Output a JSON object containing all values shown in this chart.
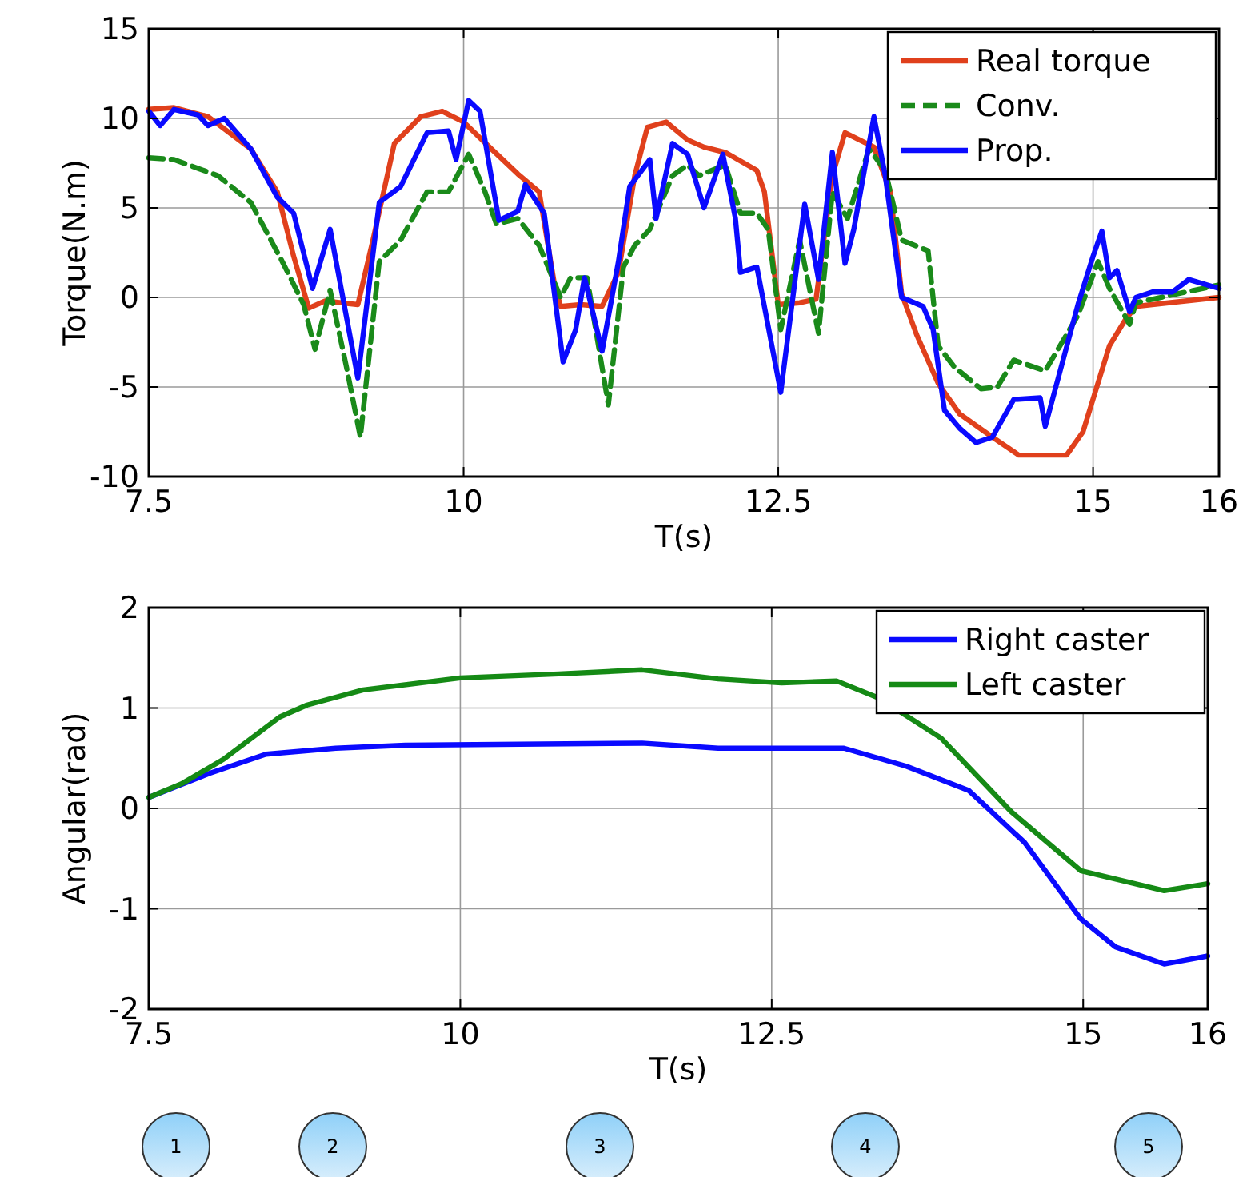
{
  "chart_data": [
    {
      "type": "line",
      "xlabel": "T(s)",
      "ylabel": "Torque(N.m)",
      "xlim": [
        7.5,
        16
      ],
      "xticks": [
        7.5,
        10,
        12.5,
        15,
        16
      ],
      "ylim": [
        -10,
        15
      ],
      "yticks": [
        -10,
        -5,
        0,
        5,
        10,
        15
      ],
      "grid": true,
      "legend": "top right",
      "marker": "none",
      "series": [
        {
          "name": "Real torque",
          "color": "#e0401c",
          "line_style": "solid",
          "x": [
            7.5,
            7.7,
            7.97,
            8.31,
            8.52,
            8.65,
            8.77,
            8.9,
            9.16,
            9.28,
            9.45,
            9.66,
            9.83,
            10.0,
            10.22,
            10.43,
            10.6,
            10.72,
            10.77,
            10.93,
            11.1,
            11.23,
            11.36,
            11.46,
            11.61,
            11.78,
            11.91,
            12.08,
            12.33,
            12.39,
            12.5,
            12.67,
            12.8,
            12.93,
            13.03,
            13.26,
            13.39,
            13.48,
            13.6,
            13.77,
            13.94,
            14.2,
            14.41,
            14.79,
            14.92,
            15.13,
            15.26,
            15.34,
            15.6,
            16
          ],
          "values": [
            10.5,
            10.6,
            10.1,
            8.3,
            5.9,
            2.3,
            -0.6,
            -0.2,
            -0.4,
            3.2,
            8.6,
            10.1,
            10.4,
            9.8,
            8.3,
            6.9,
            5.9,
            0.8,
            -0.5,
            -0.4,
            -0.5,
            1.4,
            6.8,
            9.5,
            9.8,
            8.8,
            8.4,
            8.1,
            7.1,
            5.9,
            -0.4,
            -0.3,
            -0.1,
            6.8,
            9.2,
            8.4,
            5.9,
            0.2,
            -2.1,
            -4.8,
            -6.5,
            -7.8,
            -8.8,
            -8.8,
            -7.5,
            -2.7,
            -1.2,
            -0.5,
            -0.3,
            0
          ]
        },
        {
          "name": "Conv.",
          "color": "#1a8a1a",
          "line_style": "dashed",
          "x": [
            7.5,
            7.7,
            8.05,
            8.31,
            8.56,
            8.73,
            8.82,
            8.94,
            9.07,
            9.18,
            9.33,
            9.5,
            9.71,
            9.88,
            10.04,
            10.17,
            10.26,
            10.43,
            10.6,
            10.77,
            10.85,
            10.98,
            11.15,
            11.27,
            11.36,
            11.48,
            11.66,
            11.78,
            11.87,
            12.08,
            12.2,
            12.33,
            12.42,
            12.52,
            12.67,
            12.82,
            12.93,
            13.05,
            13.22,
            13.35,
            13.48,
            13.69,
            13.77,
            13.9,
            14.11,
            14.24,
            14.37,
            14.62,
            14.88,
            15.04,
            15.13,
            15.29,
            15.34,
            16
          ],
          "values": [
            7.8,
            7.7,
            6.8,
            5.3,
            2.0,
            -0.4,
            -2.9,
            0.4,
            -3.9,
            -7.8,
            2.0,
            3.2,
            5.9,
            5.9,
            8.0,
            5.9,
            4.1,
            4.4,
            2.9,
            0,
            1.1,
            1.1,
            -6.0,
            1.7,
            2.9,
            3.8,
            6.8,
            7.4,
            6.8,
            7.4,
            4.7,
            4.7,
            3.8,
            -1.8,
            3.2,
            -2.0,
            5.9,
            4.4,
            8.3,
            7.1,
            3.2,
            2.6,
            -2.7,
            -3.9,
            -5.1,
            -5.0,
            -3.5,
            -4.1,
            -1.0,
            2.0,
            0.5,
            -1.5,
            -0.3,
            0.7
          ]
        },
        {
          "name": "Prop.",
          "color": "#0a0aff",
          "line_style": "solid",
          "x": [
            7.5,
            7.59,
            7.7,
            7.89,
            7.97,
            8.1,
            8.31,
            8.52,
            8.65,
            8.8,
            8.94,
            9.16,
            9.33,
            9.5,
            9.71,
            9.88,
            9.94,
            10.04,
            10.13,
            10.28,
            10.43,
            10.49,
            10.64,
            10.79,
            10.89,
            10.96,
            11.1,
            11.23,
            11.32,
            11.48,
            11.53,
            11.66,
            11.78,
            11.91,
            12.06,
            12.16,
            12.2,
            12.33,
            12.52,
            12.71,
            12.82,
            12.93,
            13.03,
            13.1,
            13.26,
            13.35,
            13.48,
            13.65,
            13.73,
            13.82,
            13.94,
            14.07,
            14.2,
            14.37,
            14.58,
            14.62,
            14.88,
            15.0,
            15.07,
            15.13,
            15.19,
            15.29,
            15.34,
            15.47,
            15.63,
            15.76,
            16
          ],
          "values": [
            10.4,
            9.6,
            10.5,
            10.2,
            9.6,
            10.0,
            8.3,
            5.6,
            4.7,
            0.5,
            3.8,
            -4.5,
            5.3,
            6.2,
            9.2,
            9.3,
            7.7,
            11.0,
            10.4,
            4.3,
            4.8,
            6.3,
            4.7,
            -3.6,
            -1.8,
            1.1,
            -3.0,
            2.0,
            6.2,
            7.7,
            4.4,
            8.6,
            8.0,
            5.0,
            8.0,
            4.4,
            1.4,
            1.7,
            -5.3,
            5.2,
            1.0,
            8.1,
            1.9,
            3.8,
            10.1,
            6.8,
            0,
            -0.5,
            -1.8,
            -6.3,
            -7.3,
            -8.1,
            -7.8,
            -5.7,
            -5.6,
            -7.2,
            -0.4,
            2.3,
            3.7,
            1.1,
            1.5,
            -0.8,
            0,
            0.3,
            0.3,
            1.0,
            0.5
          ]
        }
      ]
    },
    {
      "type": "line",
      "xlabel": "T(s)",
      "ylabel": "Angular(rad)",
      "xlim": [
        7.5,
        16
      ],
      "xticks": [
        7.5,
        10,
        12.5,
        15,
        16
      ],
      "ylim": [
        -2,
        2
      ],
      "yticks": [
        -2,
        -1,
        0,
        1,
        2
      ],
      "grid": true,
      "legend": "top right",
      "marker": "none",
      "annotations": [
        "1",
        "2",
        "3",
        "4",
        "5"
      ],
      "series": [
        {
          "name": "Right caster",
          "color": "#0a0aff",
          "line_style": "solid",
          "x": [
            7.5,
            7.99,
            8.44,
            9.0,
            9.56,
            11.46,
            12.07,
            13.08,
            13.58,
            14.08,
            14.53,
            14.98,
            15.26,
            15.65,
            16
          ],
          "values": [
            0.11,
            0.35,
            0.54,
            0.6,
            0.63,
            0.65,
            0.6,
            0.6,
            0.42,
            0.18,
            -0.34,
            -1.1,
            -1.38,
            -1.55,
            -1.47
          ]
        },
        {
          "name": "Left caster",
          "color": "#158a15",
          "line_style": "solid",
          "x": [
            7.5,
            7.77,
            8.1,
            8.55,
            8.77,
            9.22,
            10.0,
            10.79,
            11.46,
            12.07,
            12.58,
            13.02,
            13.36,
            13.86,
            14.42,
            14.98,
            15.65,
            16
          ],
          "values": [
            0.11,
            0.25,
            0.49,
            0.91,
            1.03,
            1.18,
            1.3,
            1.34,
            1.38,
            1.29,
            1.25,
            1.27,
            1.1,
            0.7,
            -0.03,
            -0.62,
            -0.82,
            -0.75
          ]
        }
      ]
    }
  ]
}
